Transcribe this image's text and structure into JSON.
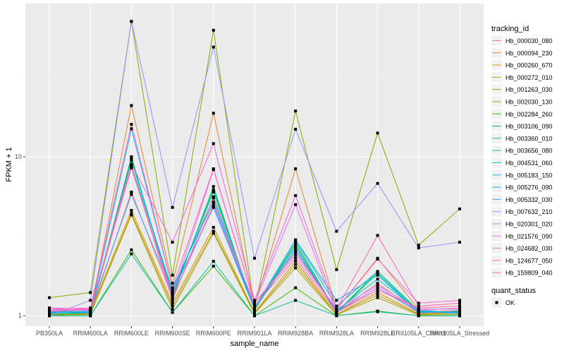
{
  "chart_data": {
    "type": "line",
    "xlabel": "sample_name",
    "ylabel": "FPKM + 1",
    "y_scale": "log10",
    "ylim": [
      0.86,
      92
    ],
    "y_ticks": [
      {
        "value": 1,
        "label": "1"
      },
      {
        "value": 10,
        "label": "10"
      }
    ],
    "categories": [
      "PB350LA",
      "RRIM600LA",
      "RRIM600LE",
      "RRIM600SE",
      "RRIM600PE",
      "RRIM901LA",
      "RRIM928BA",
      "RRIM928LA",
      "RRIM928LE",
      "RRII105LA_Control",
      "RRII105LA_Stressed"
    ],
    "legend": {
      "title": "tracking_id",
      "placement": "right"
    },
    "shape_legend": {
      "title": "quant_status",
      "entries": [
        "OK"
      ]
    },
    "series": [
      {
        "name": "Hb_000030_080",
        "color": "#F8766D",
        "values": [
          1.02,
          1.03,
          6.0,
          1.3,
          5.0,
          1.1,
          2.6,
          1.05,
          1.6,
          1.05,
          1.08
        ]
      },
      {
        "name": "Hb_000094_230",
        "color": "#EA8331",
        "values": [
          1.05,
          1.06,
          21,
          1.6,
          18.8,
          1.15,
          8.4,
          1.1,
          2.3,
          1.1,
          1.1
        ]
      },
      {
        "name": "Hb_000260_670",
        "color": "#D89000",
        "values": [
          1.08,
          1.05,
          4.6,
          1.2,
          3.6,
          1.05,
          2.2,
          1.02,
          1.4,
          1.03,
          1.05
        ]
      },
      {
        "name": "Hb_000272_010",
        "color": "#C09B00",
        "values": [
          1.03,
          1.02,
          4.4,
          1.15,
          3.4,
          1.04,
          2.1,
          1.02,
          1.35,
          1.02,
          1.04
        ]
      },
      {
        "name": "Hb_001263_030",
        "color": "#A3A500",
        "values": [
          1.01,
          1.02,
          4.3,
          1.1,
          3.3,
          1.03,
          2.0,
          1.01,
          1.3,
          1.01,
          1.02
        ]
      },
      {
        "name": "Hb_002030_130",
        "color": "#7CAE00",
        "values": [
          1.3,
          1.4,
          71,
          1.8,
          62.5,
          1.1,
          19.4,
          1.95,
          14.1,
          2.78,
          4.7
        ]
      },
      {
        "name": "Hb_002284_260",
        "color": "#39B600",
        "values": [
          1.0,
          1.0,
          2.6,
          1.05,
          2.05,
          1.0,
          1.5,
          1.0,
          1.07,
          1.0,
          1.0
        ]
      },
      {
        "name": "Hb_003106_090",
        "color": "#00BB4E",
        "values": [
          1.02,
          1.04,
          10,
          1.3,
          6.5,
          1.08,
          2.9,
          1.05,
          1.9,
          1.06,
          1.06
        ]
      },
      {
        "name": "Hb_003360_010",
        "color": "#00BF7D",
        "values": [
          1.04,
          1.05,
          9.8,
          1.35,
          6.2,
          1.1,
          2.8,
          1.04,
          1.85,
          1.04,
          1.07
        ]
      },
      {
        "name": "Hb_003656_080",
        "color": "#00C1A3",
        "values": [
          1.0,
          1.0,
          2.45,
          1.05,
          2.2,
          1.0,
          1.25,
          1.0,
          1.06,
          1.0,
          1.0
        ]
      },
      {
        "name": "Hb_004531_060",
        "color": "#00BFC4",
        "values": [
          1.06,
          1.05,
          9.5,
          1.4,
          6.0,
          1.12,
          3.0,
          1.15,
          1.9,
          1.08,
          1.05
        ]
      },
      {
        "name": "Hb_005183_150",
        "color": "#00BAE0",
        "values": [
          1.05,
          1.04,
          8.8,
          1.45,
          5.5,
          1.1,
          2.6,
          1.08,
          1.7,
          1.07,
          1.03
        ]
      },
      {
        "name": "Hb_005276_090",
        "color": "#00B0F6",
        "values": [
          1.04,
          1.06,
          15,
          1.5,
          5.2,
          1.1,
          3.0,
          1.25,
          1.8,
          1.05,
          1.06
        ]
      },
      {
        "name": "Hb_005332_030",
        "color": "#35A2FF",
        "values": [
          1.06,
          1.07,
          5.8,
          1.4,
          4.8,
          1.1,
          2.7,
          1.06,
          1.5,
          1.05,
          1.05
        ]
      },
      {
        "name": "Hb_007632_210",
        "color": "#9590FF",
        "values": [
          1.0,
          1.25,
          71,
          4.8,
          49,
          2.3,
          14.9,
          3.4,
          6.8,
          2.67,
          2.9
        ]
      },
      {
        "name": "Hb_020301_020",
        "color": "#C77CFF",
        "values": [
          1.1,
          1.08,
          8.5,
          1.3,
          4.9,
          1.2,
          2.4,
          1.1,
          1.55,
          1.1,
          1.1
        ]
      },
      {
        "name": "Hb_021576_090",
        "color": "#E76BF3",
        "values": [
          1.08,
          1.1,
          8.6,
          1.35,
          8.3,
          1.2,
          5.0,
          1.05,
          1.5,
          1.08,
          1.12
        ]
      },
      {
        "name": "Hb_024682_030",
        "color": "#FA62DB",
        "values": [
          1.12,
          1.1,
          9.0,
          2.9,
          12.1,
          1.25,
          5.7,
          1.1,
          2.27,
          1.2,
          1.25
        ]
      },
      {
        "name": "Hb_124677_050",
        "color": "#FF62BC",
        "values": [
          1.1,
          1.12,
          16,
          1.5,
          8.4,
          1.2,
          2.5,
          1.1,
          3.2,
          1.15,
          1.2
        ]
      },
      {
        "name": "Hb_159809_040",
        "color": "#FF6C91",
        "values": [
          1.07,
          1.09,
          8.7,
          1.25,
          5.6,
          1.15,
          2.3,
          1.05,
          1.45,
          1.12,
          1.15
        ]
      }
    ]
  }
}
